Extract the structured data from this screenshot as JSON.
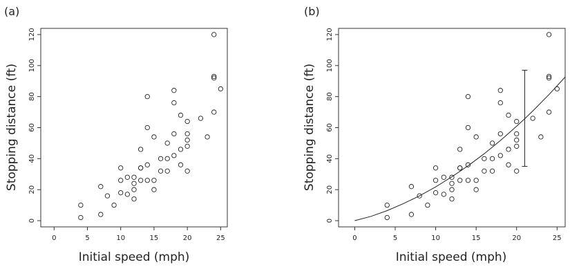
{
  "chart_data": [
    {
      "panel_label": "(a)",
      "type": "scatter",
      "xlabel": "Initial speed (mph)",
      "ylabel": "Stopping distance (ft)",
      "xlim": [
        -2,
        26
      ],
      "ylim": [
        -4,
        124
      ],
      "xticks": [
        0,
        5,
        10,
        15,
        20,
        25
      ],
      "yticks": [
        0,
        20,
        40,
        60,
        80,
        100,
        120
      ],
      "points": [
        [
          4,
          2
        ],
        [
          4,
          10
        ],
        [
          7,
          4
        ],
        [
          7,
          22
        ],
        [
          8,
          16
        ],
        [
          9,
          10
        ],
        [
          10,
          18
        ],
        [
          10,
          26
        ],
        [
          10,
          34
        ],
        [
          11,
          17
        ],
        [
          11,
          28
        ],
        [
          12,
          14
        ],
        [
          12,
          20
        ],
        [
          12,
          24
        ],
        [
          12,
          28
        ],
        [
          13,
          26
        ],
        [
          13,
          34
        ],
        [
          13,
          34
        ],
        [
          13,
          46
        ],
        [
          14,
          26
        ],
        [
          14,
          36
        ],
        [
          14,
          60
        ],
        [
          14,
          80
        ],
        [
          15,
          20
        ],
        [
          15,
          26
        ],
        [
          15,
          54
        ],
        [
          16,
          32
        ],
        [
          16,
          40
        ],
        [
          17,
          32
        ],
        [
          17,
          40
        ],
        [
          17,
          50
        ],
        [
          18,
          42
        ],
        [
          18,
          56
        ],
        [
          18,
          76
        ],
        [
          18,
          84
        ],
        [
          19,
          36
        ],
        [
          19,
          46
        ],
        [
          19,
          68
        ],
        [
          20,
          32
        ],
        [
          20,
          48
        ],
        [
          20,
          52
        ],
        [
          20,
          56
        ],
        [
          20,
          64
        ],
        [
          22,
          66
        ],
        [
          23,
          54
        ],
        [
          24,
          70
        ],
        [
          24,
          92
        ],
        [
          24,
          93
        ],
        [
          24,
          120
        ],
        [
          25,
          85
        ]
      ]
    },
    {
      "panel_label": "(b)",
      "type": "scatter",
      "xlabel": "Initial speed (mph)",
      "ylabel": "Stopping distance (ft)",
      "xlim": [
        -2,
        26
      ],
      "ylim": [
        -4,
        124
      ],
      "xticks": [
        0,
        5,
        10,
        15,
        20,
        25
      ],
      "yticks": [
        0,
        20,
        40,
        60,
        80,
        100,
        120
      ],
      "points": [
        [
          4,
          2
        ],
        [
          4,
          10
        ],
        [
          7,
          4
        ],
        [
          7,
          22
        ],
        [
          8,
          16
        ],
        [
          9,
          10
        ],
        [
          10,
          18
        ],
        [
          10,
          26
        ],
        [
          10,
          34
        ],
        [
          11,
          17
        ],
        [
          11,
          28
        ],
        [
          12,
          14
        ],
        [
          12,
          20
        ],
        [
          12,
          24
        ],
        [
          12,
          28
        ],
        [
          13,
          26
        ],
        [
          13,
          34
        ],
        [
          13,
          34
        ],
        [
          13,
          46
        ],
        [
          14,
          26
        ],
        [
          14,
          36
        ],
        [
          14,
          60
        ],
        [
          14,
          80
        ],
        [
          15,
          20
        ],
        [
          15,
          26
        ],
        [
          15,
          54
        ],
        [
          16,
          32
        ],
        [
          16,
          40
        ],
        [
          17,
          32
        ],
        [
          17,
          40
        ],
        [
          17,
          50
        ],
        [
          18,
          42
        ],
        [
          18,
          56
        ],
        [
          18,
          76
        ],
        [
          18,
          84
        ],
        [
          19,
          36
        ],
        [
          19,
          46
        ],
        [
          19,
          68
        ],
        [
          20,
          32
        ],
        [
          20,
          48
        ],
        [
          20,
          52
        ],
        [
          20,
          56
        ],
        [
          20,
          64
        ],
        [
          22,
          66
        ],
        [
          23,
          54
        ],
        [
          24,
          70
        ],
        [
          24,
          92
        ],
        [
          24,
          93
        ],
        [
          24,
          120
        ],
        [
          25,
          85
        ]
      ],
      "fit_curve": {
        "x": [
          0,
          2,
          4,
          6,
          8,
          10,
          12,
          14,
          16,
          18,
          20,
          21,
          22,
          24,
          26
        ],
        "y": [
          0,
          2.8,
          6.5,
          11,
          16,
          21.8,
          28.3,
          35.4,
          43.2,
          51.7,
          60.9,
          65.7,
          70.7,
          81.3,
          92.6
        ]
      },
      "interval": {
        "x": 21,
        "ymin": 35,
        "ymax": 97
      }
    }
  ]
}
